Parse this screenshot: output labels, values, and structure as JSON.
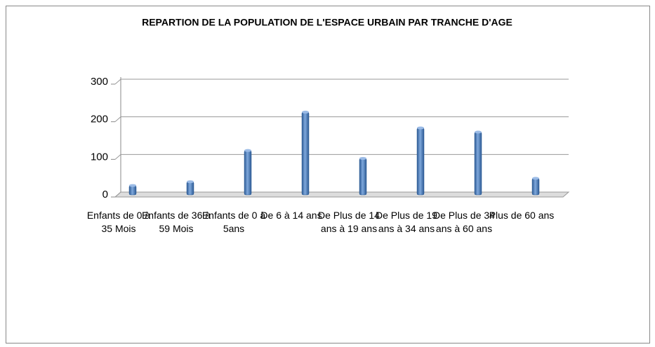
{
  "chart_data": {
    "type": "bar",
    "title": "REPARTION DE LA POPULATION DE L'ESPACE URBAIN PAR TRANCHE D'AGE",
    "categories": [
      "Enfants de 0 à 35 Mois",
      "Enfants de 36 à 59 Mois",
      "Enfants de 0 à 5ans",
      "De 6 à 14 ans",
      "De Plus de 14 ans à 19 ans",
      "De Plus de 19 ans à 34 ans",
      "De Plus de 34 ans à 60 ans",
      "Plus de 60 ans"
    ],
    "values": [
      25,
      35,
      118,
      220,
      97,
      178,
      167,
      44
    ],
    "color": "#4f81bd",
    "ylim": [
      0,
      300
    ],
    "yticks": [
      0,
      100,
      200,
      300
    ],
    "grid": true
  }
}
